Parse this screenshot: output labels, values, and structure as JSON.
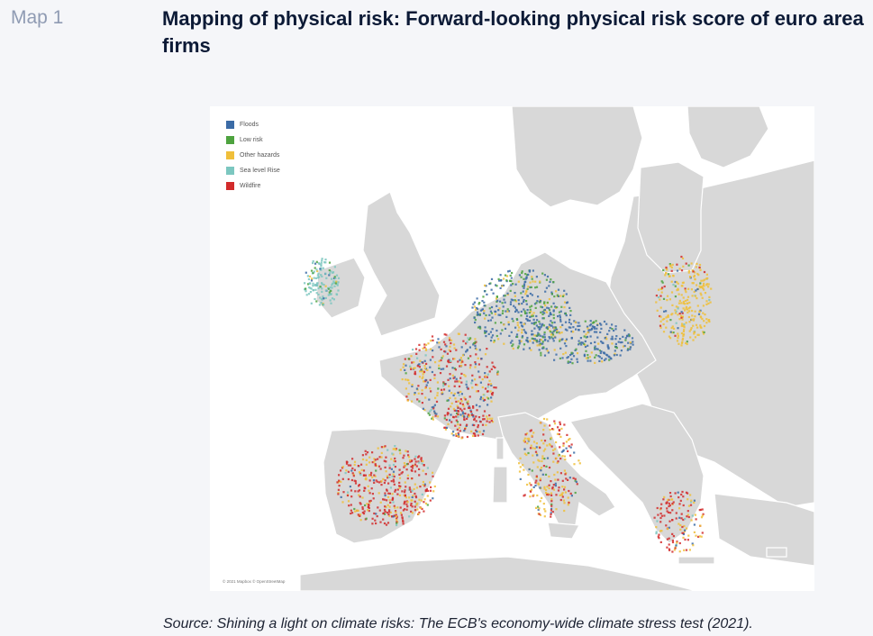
{
  "header": {
    "label": "Map 1",
    "title": "Mapping of physical risk: Forward-looking physical risk score of euro area firms"
  },
  "legend": [
    {
      "label": "Floods",
      "color": "#3b6ba6"
    },
    {
      "label": "Low risk",
      "color": "#4ea33f"
    },
    {
      "label": "Other hazards",
      "color": "#f0bf3a"
    },
    {
      "label": "Sea level Rise",
      "color": "#7cc7c0"
    },
    {
      "label": "Wildfire",
      "color": "#d22b2b"
    }
  ],
  "credit": "© 2021 Mapbox © OpenStreetMap",
  "source": "Source: Shining a light on climate risks: The ECB's economy-wide climate stress test (2021).",
  "colors": {
    "sea": "#ffffff",
    "land": "#d8d8d8",
    "border": "#ffffff"
  }
}
